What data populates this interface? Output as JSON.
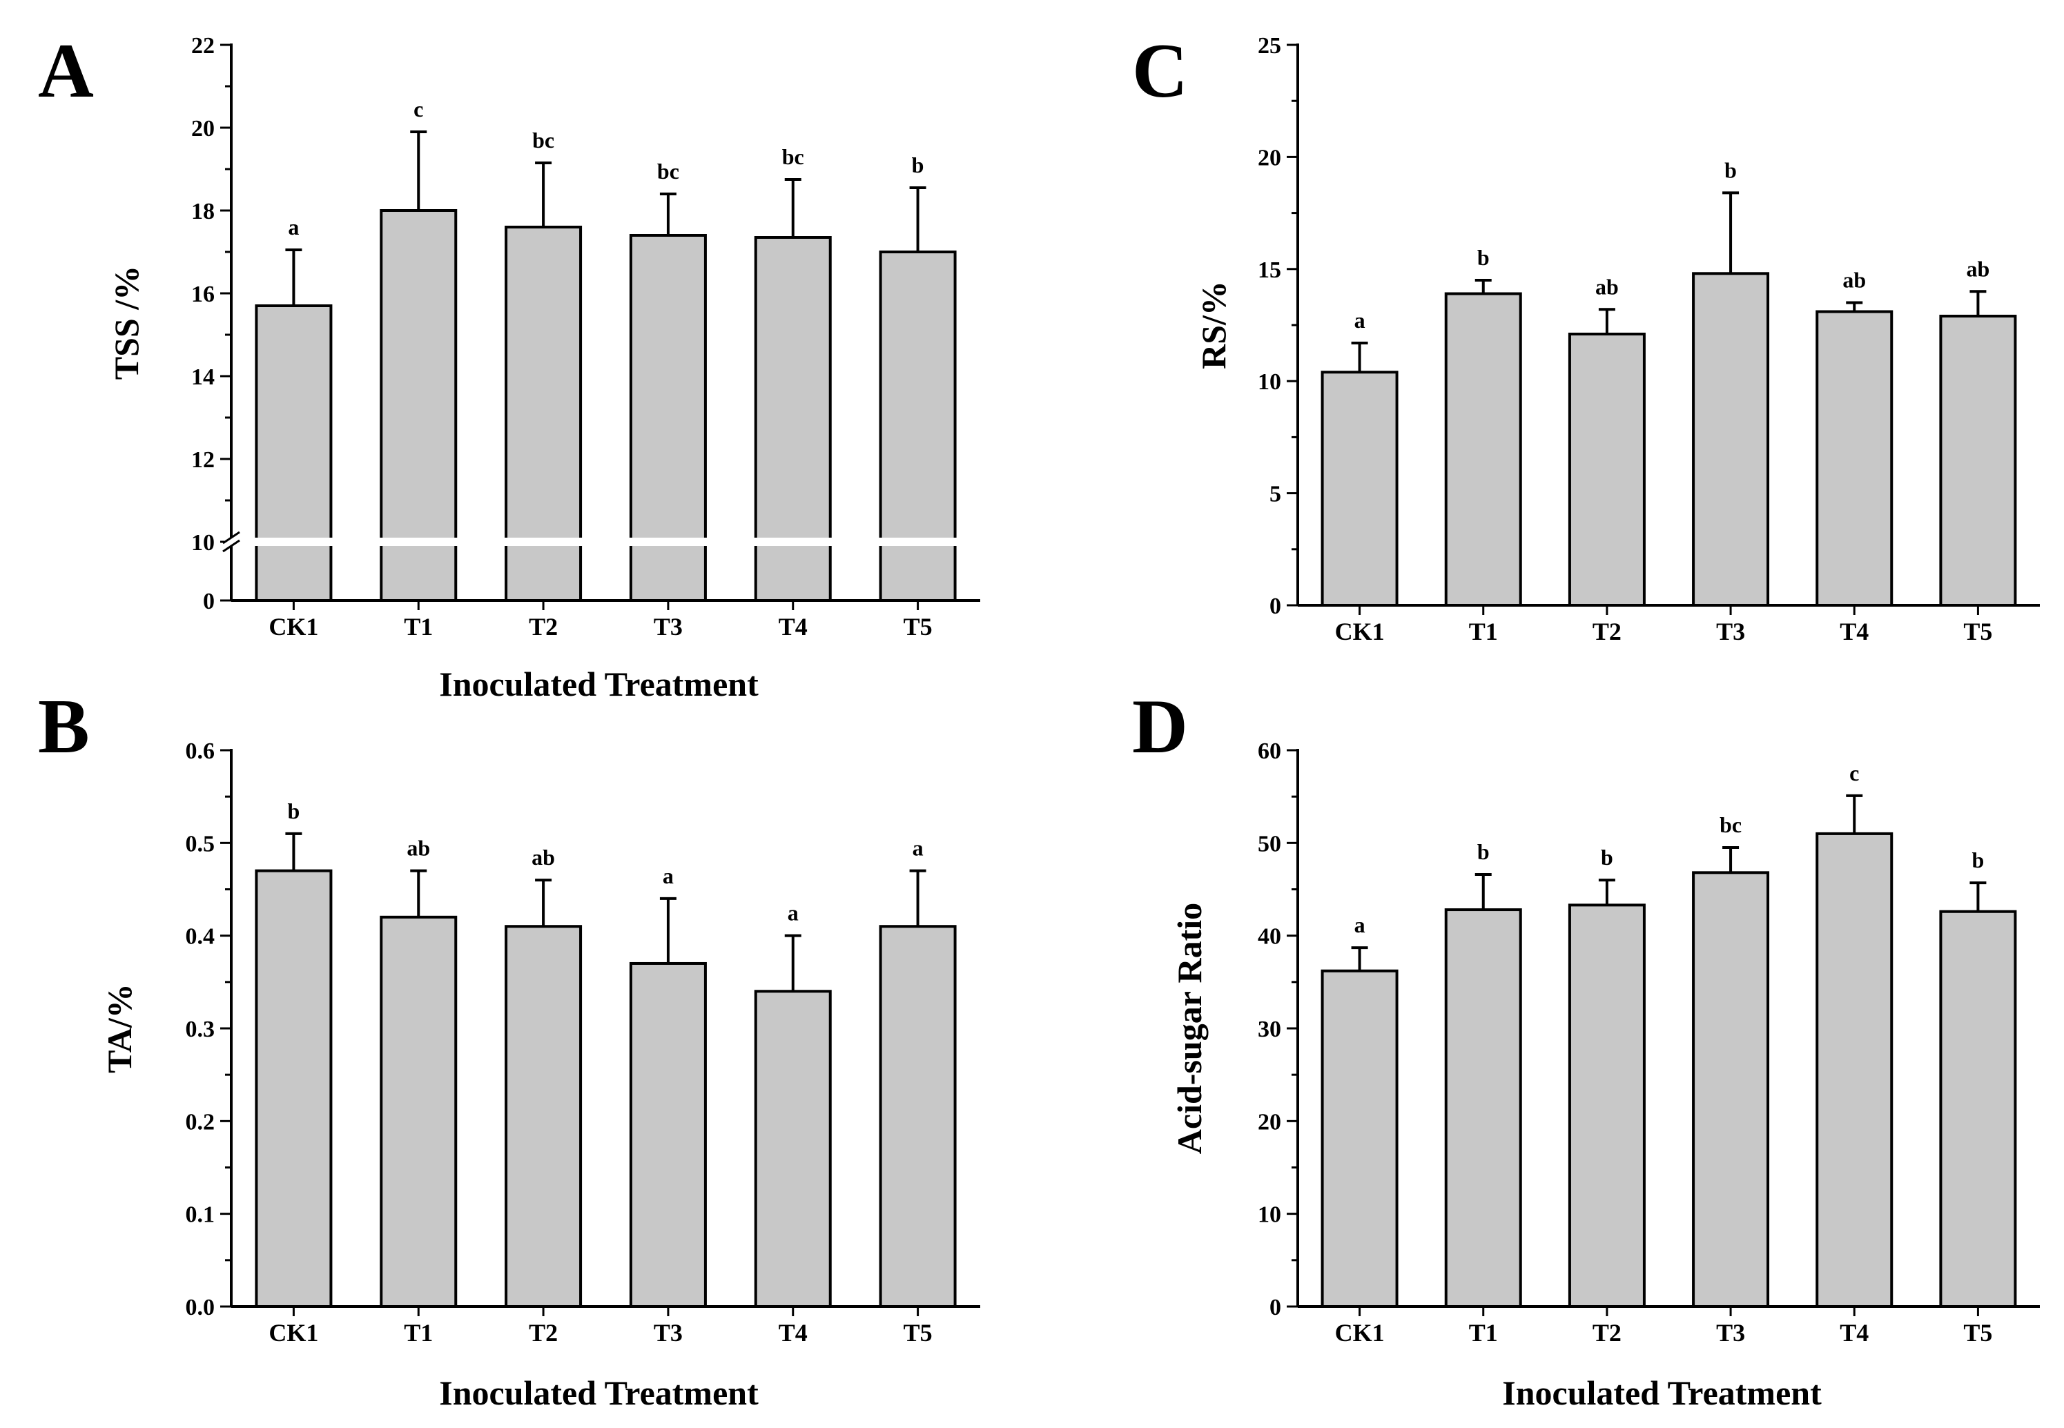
{
  "figure": {
    "panels": [
      "A",
      "B",
      "C",
      "D"
    ]
  },
  "chart_data": [
    {
      "panel": "A",
      "type": "bar",
      "title": "",
      "xlabel": "Inoculated Treatment",
      "ylabel": "TSS /%",
      "categories": [
        "CK1",
        "T1",
        "T2",
        "T3",
        "T4",
        "T5"
      ],
      "values": [
        15.7,
        18.0,
        17.6,
        17.4,
        17.35,
        17.0
      ],
      "errors": [
        1.35,
        1.9,
        1.55,
        1.0,
        1.4,
        1.55
      ],
      "significance": [
        "a",
        "c",
        "bc",
        "bc",
        "bc",
        "b"
      ],
      "ylim": [
        0,
        22
      ],
      "axis_break": {
        "from": 0,
        "to": 10
      },
      "yticks": [
        0,
        10,
        12,
        14,
        16,
        18,
        20,
        22
      ],
      "ytick_labels": [
        "0",
        "10",
        "12",
        "14",
        "16",
        "18",
        "20",
        "22"
      ]
    },
    {
      "panel": "B",
      "type": "bar",
      "title": "",
      "xlabel": "Inoculated Treatment",
      "ylabel": "TA/%",
      "categories": [
        "CK1",
        "T1",
        "T2",
        "T3",
        "T4",
        "T5"
      ],
      "values": [
        0.47,
        0.42,
        0.41,
        0.37,
        0.34,
        0.41
      ],
      "errors": [
        0.04,
        0.05,
        0.05,
        0.07,
        0.06,
        0.06
      ],
      "significance": [
        "b",
        "ab",
        "ab",
        "a",
        "a",
        "a"
      ],
      "ylim": [
        0,
        0.6
      ],
      "yticks": [
        0,
        0.1,
        0.2,
        0.3,
        0.4,
        0.5,
        0.6
      ],
      "ytick_labels": [
        "0.0",
        "0.1",
        "0.2",
        "0.3",
        "0.4",
        "0.5",
        "0.6"
      ]
    },
    {
      "panel": "C",
      "type": "bar",
      "title": "",
      "xlabel": "",
      "ylabel": "RS/%",
      "categories": [
        "CK1",
        "T1",
        "T2",
        "T3",
        "T4",
        "T5"
      ],
      "values": [
        10.4,
        13.9,
        12.1,
        14.8,
        13.1,
        12.9
      ],
      "errors": [
        1.3,
        0.6,
        1.1,
        3.6,
        0.4,
        1.1
      ],
      "significance": [
        "a",
        "b",
        "ab",
        "b",
        "ab",
        "ab"
      ],
      "ylim": [
        0,
        25
      ],
      "yticks": [
        0,
        5,
        10,
        15,
        20,
        25
      ],
      "ytick_labels": [
        "0",
        "5",
        "10",
        "15",
        "20",
        "25"
      ]
    },
    {
      "panel": "D",
      "type": "bar",
      "title": "",
      "xlabel": "Inoculated Treatment",
      "ylabel": "Acid-sugar Ratio",
      "categories": [
        "CK1",
        "T1",
        "T2",
        "T3",
        "T4",
        "T5"
      ],
      "values": [
        36.2,
        42.8,
        43.3,
        46.8,
        51.0,
        42.6
      ],
      "errors": [
        2.5,
        3.8,
        2.7,
        2.7,
        4.1,
        3.1
      ],
      "significance": [
        "a",
        "b",
        "b",
        "bc",
        "c",
        "b"
      ],
      "ylim": [
        0,
        60
      ],
      "yticks": [
        0,
        10,
        20,
        30,
        40,
        50,
        60
      ],
      "ytick_labels": [
        "0",
        "10",
        "20",
        "30",
        "40",
        "50",
        "60"
      ]
    }
  ]
}
